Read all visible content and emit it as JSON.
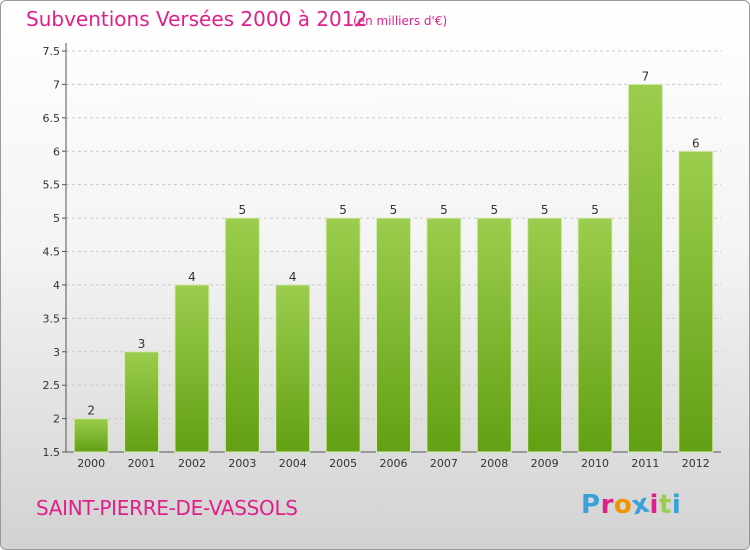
{
  "header": {
    "title": "Subventions Versées 2000 à 2012",
    "unit_note": "(en milliers d'€)"
  },
  "footer": {
    "commune": "SAINT-PIERRE-DE-VASSOLS",
    "logo_text": "Proxiti"
  },
  "colors": {
    "title": "#e0208a",
    "bar_light": "#9ccd4e",
    "bar_dark": "#62a013",
    "logo_letters": [
      "#3aa0d8",
      "#e0208a",
      "#f29400",
      "#3aa0d8",
      "#e0208a",
      "#9ccd4e",
      "#3aa0d8"
    ]
  },
  "chart_data": {
    "type": "bar",
    "title": "Subventions Versées 2000 à 2012",
    "subtitle": "(en milliers d'€)",
    "xlabel": "",
    "ylabel": "",
    "categories": [
      "2000",
      "2001",
      "2002",
      "2003",
      "2004",
      "2005",
      "2006",
      "2007",
      "2008",
      "2009",
      "2010",
      "2011",
      "2012"
    ],
    "values": [
      2,
      3,
      4,
      5,
      4,
      5,
      5,
      5,
      5,
      5,
      5,
      7,
      6
    ],
    "ylim": [
      1.5,
      7.5
    ],
    "yticks": [
      "1.5",
      "2",
      "2.5",
      "3",
      "3.5",
      "4",
      "4.5",
      "5",
      "5.5",
      "6",
      "6.5",
      "7",
      "7.5"
    ],
    "grid": "horizontal dashed",
    "legend": "none"
  }
}
